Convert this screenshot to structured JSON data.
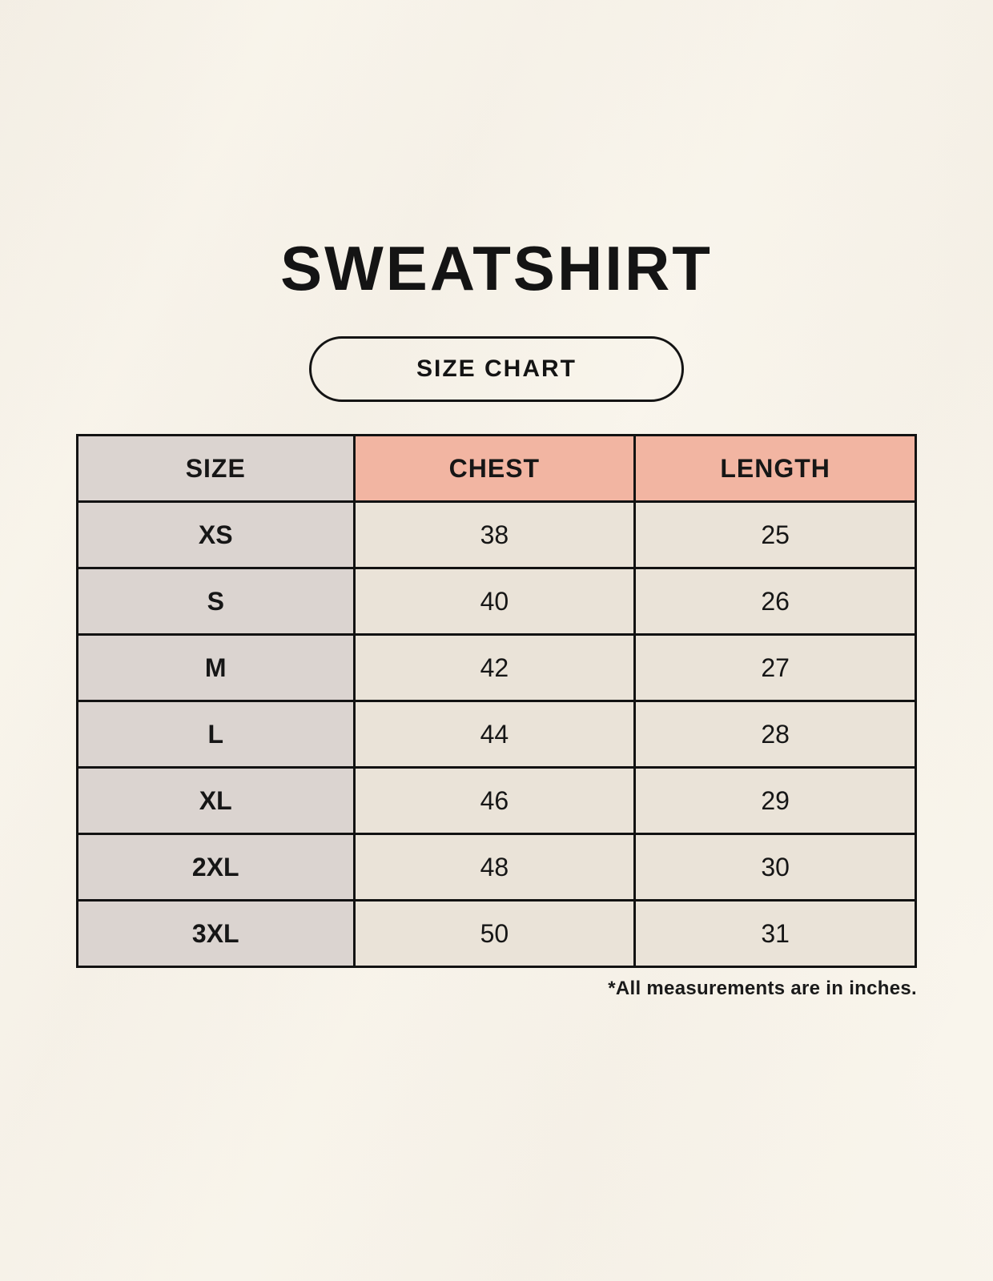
{
  "page": {
    "title": "SWEATSHIRT",
    "size_chart_button_label": "SIZE CHART",
    "footnote": "*All measurements are in inches."
  },
  "colors": {
    "background": "#F9F5EC",
    "size_column_bg": "#DBD4D0",
    "measure_header_bg": "#F2B5A2",
    "data_cell_bg": "#EAE3D8",
    "table_border": "#121212",
    "text": "#161616"
  },
  "chart_data": {
    "type": "table",
    "title": "SWEATSHIRT",
    "subtitle": "SIZE CHART",
    "units": "inches",
    "columns": [
      "SIZE",
      "CHEST",
      "LENGTH"
    ],
    "rows": [
      [
        "XS",
        "38",
        "25"
      ],
      [
        "S",
        "40",
        "26"
      ],
      [
        "M",
        "42",
        "27"
      ],
      [
        "L",
        "44",
        "28"
      ],
      [
        "XL",
        "46",
        "29"
      ],
      [
        "2XL",
        "48",
        "30"
      ],
      [
        "3XL",
        "50",
        "31"
      ]
    ]
  }
}
